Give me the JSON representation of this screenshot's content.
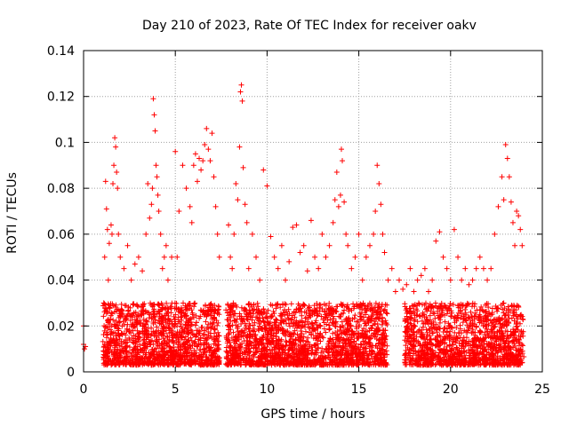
{
  "chart_data": {
    "type": "scatter",
    "title": "Day 210 of 2023, Rate Of TEC Index for receiver oakv",
    "xlabel": "GPS time / hours",
    "ylabel": "ROTI / TECUs",
    "xlim": [
      0,
      25
    ],
    "ylim": [
      0,
      0.14
    ],
    "xticks": [
      0,
      5,
      10,
      15,
      20,
      25
    ],
    "xtick_labels": [
      "0",
      "5",
      "10",
      "15",
      "20",
      "25"
    ],
    "yticks": [
      0,
      0.02,
      0.04,
      0.06,
      0.08,
      0.1,
      0.12,
      0.14
    ],
    "ytick_labels": [
      "0",
      "0.02",
      "0.04",
      "0.06",
      "0.08",
      "0.1",
      "0.12",
      "0.14"
    ],
    "grid": true,
    "marker": "+",
    "color": "#ff0000",
    "series": [
      {
        "name": "ROTI",
        "x": [
          0.0,
          0.05,
          0.1,
          0.0,
          1.1,
          1.15,
          1.2,
          1.25,
          1.3,
          1.35,
          1.4,
          1.5,
          1.55,
          1.6,
          1.65,
          1.7,
          1.75,
          1.8,
          1.85,
          1.9,
          2.0,
          2.2,
          2.4,
          2.6,
          2.8,
          3.0,
          3.2,
          3.4,
          3.5,
          3.6,
          3.7,
          3.75,
          3.8,
          3.85,
          3.9,
          3.95,
          4.0,
          4.05,
          4.1,
          4.2,
          4.3,
          4.4,
          4.5,
          4.6,
          4.8,
          5.0,
          5.1,
          5.2,
          5.4,
          5.6,
          5.8,
          5.9,
          6.0,
          6.1,
          6.2,
          6.3,
          6.4,
          6.5,
          6.6,
          6.7,
          6.8,
          6.9,
          7.0,
          7.1,
          7.2,
          7.3,
          7.4,
          7.9,
          8.0,
          8.1,
          8.2,
          8.3,
          8.4,
          8.5,
          8.55,
          8.6,
          8.65,
          8.7,
          8.8,
          8.9,
          9.0,
          9.2,
          9.4,
          9.6,
          9.8,
          10.0,
          10.2,
          10.4,
          10.6,
          10.8,
          11.0,
          11.2,
          11.4,
          11.6,
          11.8,
          12.0,
          12.2,
          12.4,
          12.6,
          12.8,
          13.0,
          13.2,
          13.4,
          13.6,
          13.7,
          13.8,
          13.9,
          14.0,
          14.05,
          14.1,
          14.2,
          14.3,
          14.4,
          14.6,
          14.8,
          15.0,
          15.2,
          15.4,
          15.6,
          15.8,
          15.9,
          16.0,
          16.1,
          16.2,
          16.3,
          16.4,
          16.6,
          16.8,
          17.0,
          17.2,
          17.4,
          17.6,
          17.8,
          18.0,
          18.2,
          18.4,
          18.6,
          18.8,
          19.0,
          19.2,
          19.4,
          19.6,
          19.8,
          20.0,
          20.2,
          20.4,
          20.6,
          20.8,
          21.0,
          21.2,
          21.4,
          21.6,
          21.8,
          22.0,
          22.2,
          22.4,
          22.6,
          22.8,
          22.9,
          23.0,
          23.1,
          23.2,
          23.3,
          23.4,
          23.5,
          23.6,
          23.7,
          23.8,
          23.9
        ],
        "y": [
          0.012,
          0.01,
          0.011,
          0.02,
          0.03,
          0.05,
          0.083,
          0.071,
          0.062,
          0.04,
          0.056,
          0.064,
          0.06,
          0.082,
          0.09,
          0.102,
          0.098,
          0.087,
          0.08,
          0.06,
          0.05,
          0.045,
          0.055,
          0.04,
          0.047,
          0.05,
          0.044,
          0.06,
          0.082,
          0.067,
          0.073,
          0.08,
          0.119,
          0.112,
          0.105,
          0.09,
          0.085,
          0.077,
          0.07,
          0.06,
          0.045,
          0.05,
          0.055,
          0.04,
          0.05,
          0.096,
          0.05,
          0.07,
          0.09,
          0.08,
          0.072,
          0.065,
          0.09,
          0.095,
          0.083,
          0.093,
          0.088,
          0.092,
          0.099,
          0.106,
          0.097,
          0.092,
          0.104,
          0.085,
          0.072,
          0.06,
          0.05,
          0.064,
          0.05,
          0.045,
          0.06,
          0.082,
          0.075,
          0.098,
          0.122,
          0.125,
          0.118,
          0.089,
          0.073,
          0.065,
          0.045,
          0.06,
          0.05,
          0.04,
          0.088,
          0.081,
          0.059,
          0.05,
          0.045,
          0.055,
          0.04,
          0.048,
          0.063,
          0.064,
          0.052,
          0.055,
          0.044,
          0.066,
          0.05,
          0.045,
          0.06,
          0.05,
          0.055,
          0.065,
          0.075,
          0.087,
          0.072,
          0.077,
          0.097,
          0.092,
          0.074,
          0.06,
          0.055,
          0.045,
          0.05,
          0.06,
          0.04,
          0.05,
          0.055,
          0.06,
          0.07,
          0.09,
          0.082,
          0.073,
          0.06,
          0.052,
          0.04,
          0.045,
          0.035,
          0.04,
          0.036,
          0.038,
          0.045,
          0.035,
          0.04,
          0.042,
          0.045,
          0.035,
          0.04,
          0.057,
          0.061,
          0.05,
          0.045,
          0.04,
          0.062,
          0.05,
          0.04,
          0.045,
          0.038,
          0.04,
          0.045,
          0.05,
          0.045,
          0.04,
          0.045,
          0.06,
          0.072,
          0.085,
          0.075,
          0.099,
          0.093,
          0.085,
          0.074,
          0.065,
          0.055,
          0.07,
          0.068,
          0.062,
          0.055
        ]
      },
      {
        "name": "ROTI background",
        "note": "dense band of low ROTI values present through every visible segment",
        "segments": [
          [
            1.05,
            7.4
          ],
          [
            7.75,
            16.55
          ],
          [
            17.5,
            24.0
          ]
        ],
        "y_range": [
          0.003,
          0.03
        ]
      }
    ]
  }
}
